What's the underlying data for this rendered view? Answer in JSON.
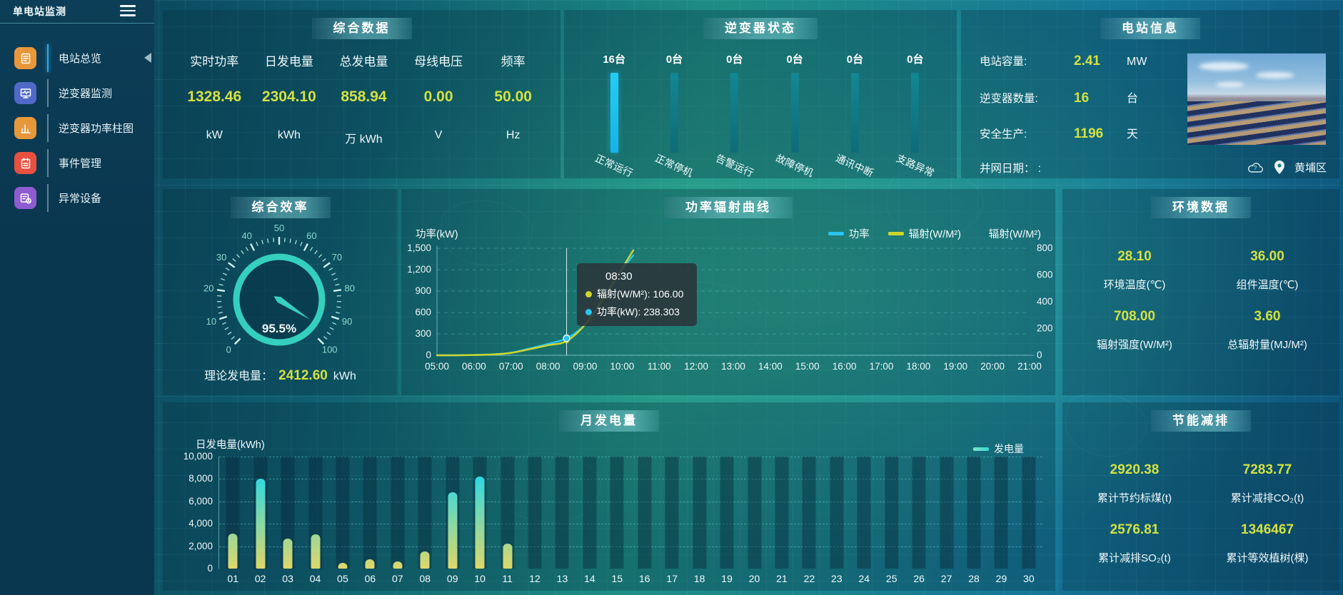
{
  "app": {
    "title": "单电站监测"
  },
  "colors": {
    "accent_yellow": "#d3e141",
    "inverter_bar_highlight": "#24ccf5",
    "inverter_bar_dim": "#107a86",
    "power_line": "#29c4f0",
    "radiation_line": "#cdd62c",
    "gauge_teal": "#35cfbe"
  },
  "sidebar": {
    "items": [
      {
        "label": "电站总览",
        "icon": "station-overview-icon",
        "color": "#e8973a",
        "active": true
      },
      {
        "label": "逆变器监测",
        "icon": "inverter-monitor-icon",
        "color": "#5069c8",
        "active": false
      },
      {
        "label": "逆变器功率柱图",
        "icon": "inverter-power-bars-icon",
        "color": "#e8973a",
        "active": false
      },
      {
        "label": "事件管理",
        "icon": "event-management-icon",
        "color": "#e8503f",
        "active": false
      },
      {
        "label": "异常设备",
        "icon": "abnormal-device-icon",
        "color": "#8f5bd0",
        "active": false
      }
    ]
  },
  "summary_panel": {
    "title": "综合数据",
    "metrics": [
      {
        "label": "实时功率",
        "value": "1328.46",
        "unit": "kW"
      },
      {
        "label": "日发电量",
        "value": "2304.10",
        "unit": "kWh"
      },
      {
        "label": "总发电量",
        "value": "858.94",
        "unit": "万 kWh"
      },
      {
        "label": "母线电压",
        "value": "0.00",
        "unit": "V"
      },
      {
        "label": "频率",
        "value": "50.00",
        "unit": "Hz"
      }
    ]
  },
  "inverter_panel": {
    "title": "逆变器状态"
  },
  "station_panel": {
    "title": "电站信息",
    "rows": [
      {
        "label": "电站容量:",
        "value": "2.41",
        "unit": "MW"
      },
      {
        "label": "逆变器数量:",
        "value": "16",
        "unit": "台"
      },
      {
        "label": "安全生产:",
        "value": "1196",
        "unit": "天"
      },
      {
        "label": "并网日期： :",
        "value": "",
        "unit": ""
      }
    ],
    "location": "黄埔区"
  },
  "efficiency_panel": {
    "title": "综合效率",
    "value_label": "95.5%",
    "theory_label": "理论发电量：",
    "theory_value": "2412.60",
    "theory_unit": "kWh"
  },
  "curve_panel": {
    "title": "功率辐射曲线",
    "left_axis_label": "功率(kW)",
    "right_axis_label": "辐射(W/M²)",
    "legend": [
      {
        "name": "功率",
        "color": "#29c4f0"
      },
      {
        "name": "辐射(W/M²)",
        "color": "#cdd62c"
      }
    ],
    "tooltip": {
      "title": "08:30",
      "rows": [
        {
          "name": "辐射(W/M²)",
          "value": "106.00",
          "color": "#cdd62c"
        },
        {
          "name": "功率(kW)",
          "value": "238.303",
          "color": "#29c4f0"
        }
      ]
    }
  },
  "environment_panel": {
    "title": "环境数据",
    "items": [
      {
        "value": "28.10",
        "label": "环境温度(℃)"
      },
      {
        "value": "36.00",
        "label": "组件温度(℃)"
      },
      {
        "value": "708.00",
        "label": "辐射强度(W/M²)"
      },
      {
        "value": "3.60",
        "label": "总辐射量(MJ/M²)"
      }
    ]
  },
  "monthly_panel": {
    "title": "月发电量",
    "axis_label": "日发电量(kWh)",
    "legend": "发电量"
  },
  "savings_panel": {
    "title": "节能减排",
    "items": [
      {
        "value": "2920.38",
        "label": "累计节约标煤(t)"
      },
      {
        "value": "7283.77",
        "label": "累计减排CO₂(t)"
      },
      {
        "value": "2576.81",
        "label": "累计减排SO₂(t)"
      },
      {
        "value": "1346467",
        "label": "累计等效植树(棵)"
      }
    ]
  },
  "chart_data": [
    {
      "id": "inverter-status",
      "type": "bar",
      "categories": [
        "正常运行",
        "正常停机",
        "告警运行",
        "故障停机",
        "通讯中断",
        "支路异常"
      ],
      "values": [
        16,
        0,
        0,
        0,
        0,
        0
      ],
      "value_labels": [
        "16台",
        "0台",
        "0台",
        "0台",
        "0台",
        "0台"
      ]
    },
    {
      "id": "power-radiation",
      "type": "line",
      "title": "功率辐射曲线",
      "x_ticks": [
        "05:00",
        "06:00",
        "07:00",
        "08:00",
        "09:00",
        "10:00",
        "11:00",
        "12:00",
        "13:00",
        "14:00",
        "15:00",
        "16:00",
        "17:00",
        "18:00",
        "19:00",
        "20:00",
        "21:00"
      ],
      "xlim": [
        5,
        21
      ],
      "left_axis": {
        "label": "功率(kW)",
        "ticks": [
          0,
          300,
          600,
          900,
          1200,
          1500
        ],
        "max": 1500
      },
      "right_axis": {
        "label": "辐射(W/M²)",
        "ticks": [
          0,
          200,
          400,
          600,
          800
        ],
        "max": 800
      },
      "series": [
        {
          "name": "功率",
          "axis": "left",
          "color": "#29c4f0",
          "points": [
            [
              5,
              0
            ],
            [
              5.5,
              0
            ],
            [
              6,
              4
            ],
            [
              6.5,
              12
            ],
            [
              7,
              35
            ],
            [
              7.5,
              95
            ],
            [
              8,
              160
            ],
            [
              8.5,
              238.3
            ],
            [
              9,
              430
            ],
            [
              9.5,
              800
            ],
            [
              10,
              1200
            ],
            [
              10.3,
              1400
            ]
          ]
        },
        {
          "name": "辐射(W/M²)",
          "axis": "right",
          "color": "#cdd62c",
          "points": [
            [
              5,
              0
            ],
            [
              5.5,
              0
            ],
            [
              6,
              2
            ],
            [
              6.5,
              6
            ],
            [
              7,
              18
            ],
            [
              7.5,
              45
            ],
            [
              8,
              75
            ],
            [
              8.5,
              106
            ],
            [
              9,
              230
            ],
            [
              9.5,
              430
            ],
            [
              10,
              650
            ],
            [
              10.3,
              785
            ]
          ]
        }
      ],
      "pointer": {
        "x": 8.5,
        "time": "08:30",
        "power": 238.303,
        "radiation": 106
      },
      "legend_position": "top-right",
      "grid": "dashed-horizontal"
    },
    {
      "id": "monthly-generation",
      "type": "bar",
      "title": "月发电量",
      "ylabel": "日发电量(kWh)",
      "legend": "发电量",
      "categories": [
        "01",
        "02",
        "03",
        "04",
        "05",
        "06",
        "07",
        "08",
        "09",
        "10",
        "11",
        "12",
        "13",
        "14",
        "15",
        "16",
        "17",
        "18",
        "19",
        "20",
        "21",
        "22",
        "23",
        "24",
        "25",
        "26",
        "27",
        "28",
        "29",
        "30"
      ],
      "values": [
        3100,
        8000,
        2700,
        3050,
        500,
        800,
        650,
        1500,
        6800,
        8200,
        2250,
        0,
        0,
        0,
        0,
        0,
        0,
        0,
        0,
        0,
        0,
        0,
        0,
        0,
        0,
        0,
        0,
        0,
        0,
        0
      ],
      "ylim": [
        0,
        10000
      ],
      "yticks": [
        0,
        2000,
        4000,
        6000,
        8000,
        10000
      ]
    },
    {
      "id": "efficiency-gauge",
      "type": "gauge",
      "min": 0,
      "max": 100,
      "value": 95.5,
      "label": "95.5%",
      "major_tick_step": 10
    }
  ]
}
